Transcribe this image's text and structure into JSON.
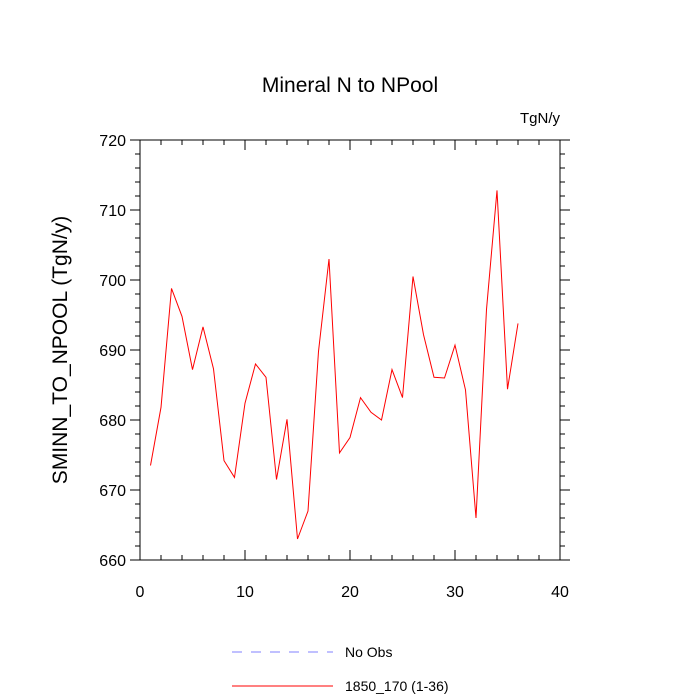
{
  "chart_data": {
    "type": "line",
    "title": "Mineral N to NPool",
    "units_label": "TgN/y",
    "xlabel": "",
    "ylabel": "SMINN_TO_NPOOL  (TgN/y)",
    "xlim": [
      0,
      40
    ],
    "ylim": [
      660,
      720
    ],
    "x_ticks": [
      0,
      10,
      20,
      30,
      40
    ],
    "y_ticks": [
      660,
      670,
      680,
      690,
      700,
      710,
      720
    ],
    "grid": false,
    "legend_position": "bottom",
    "series": [
      {
        "name": "No Obs",
        "color": "#8080ff",
        "dashed": true,
        "x": [],
        "values": []
      },
      {
        "name": "1850_170 (1-36)",
        "color": "#ff0000",
        "dashed": false,
        "x": [
          1,
          2,
          3,
          4,
          5,
          6,
          7,
          8,
          9,
          10,
          11,
          12,
          13,
          14,
          15,
          16,
          17,
          18,
          19,
          20,
          21,
          22,
          23,
          24,
          25,
          26,
          27,
          28,
          29,
          30,
          31,
          32,
          33,
          34,
          35,
          36
        ],
        "values": [
          673.5,
          681.8,
          698.8,
          694.8,
          687.2,
          693.3,
          687.3,
          674.2,
          671.8,
          682.4,
          688.0,
          686.1,
          671.5,
          680.1,
          663.0,
          667.0,
          689.8,
          703.0,
          675.3,
          677.5,
          683.2,
          681.1,
          680.0,
          687.2,
          683.2,
          700.5,
          692.2,
          686.1,
          686.0,
          690.7,
          684.3,
          666.0,
          695.8,
          712.8,
          684.4,
          693.8
        ]
      }
    ]
  }
}
